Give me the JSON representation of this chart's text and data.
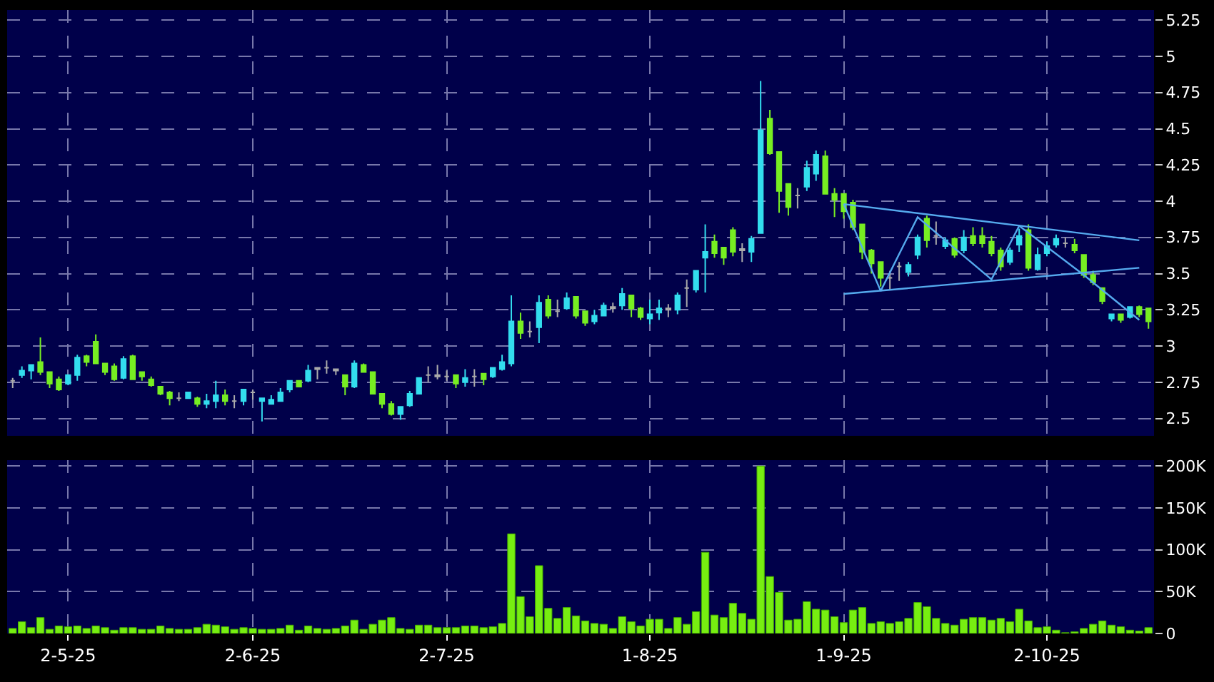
{
  "chart_data": [
    {
      "type": "candlestick",
      "categories": [
        null,
        null,
        null,
        null,
        null,
        null,
        null,
        null,
        null,
        null,
        null,
        null,
        null,
        null,
        null,
        null,
        null,
        null,
        null,
        null,
        null,
        null,
        null,
        null,
        null,
        null,
        null,
        null,
        null,
        null,
        null,
        null,
        null,
        null,
        null,
        null,
        null,
        null,
        null,
        null,
        null,
        null,
        null,
        null,
        null,
        null,
        null,
        null,
        null,
        null,
        null,
        null,
        null,
        null,
        null,
        null,
        null,
        null,
        null,
        null,
        null,
        null,
        null,
        null,
        null,
        null,
        null,
        null,
        null,
        null,
        null,
        null,
        null,
        null,
        null,
        null,
        null,
        null,
        null,
        null,
        null,
        null,
        null,
        null,
        null,
        null,
        null,
        null,
        null,
        null,
        null,
        null,
        null,
        null,
        null,
        null,
        null,
        null,
        null,
        null,
        null,
        null,
        null,
        null,
        null,
        null,
        null,
        null,
        null,
        null,
        null,
        null,
        null,
        null,
        null,
        null,
        null,
        null,
        null,
        null,
        null,
        null,
        null,
        null
      ],
      "ohlc": [
        [
          2.76,
          2.78,
          2.71,
          2.76
        ],
        [
          2.8,
          2.86,
          2.78,
          2.83
        ],
        [
          2.83,
          2.87,
          2.77,
          2.87
        ],
        [
          2.89,
          3.06,
          2.8,
          2.82
        ],
        [
          2.82,
          2.82,
          2.71,
          2.74
        ],
        [
          2.77,
          2.79,
          2.69,
          2.7
        ],
        [
          2.74,
          2.8,
          2.73,
          2.8
        ],
        [
          2.8,
          2.94,
          2.76,
          2.92
        ],
        [
          2.93,
          2.94,
          2.86,
          2.89
        ],
        [
          3.03,
          3.08,
          2.88,
          2.88
        ],
        [
          2.88,
          2.88,
          2.8,
          2.82
        ],
        [
          2.86,
          2.88,
          2.76,
          2.77
        ],
        [
          2.78,
          2.93,
          2.77,
          2.91
        ],
        [
          2.93,
          2.94,
          2.77,
          2.77
        ],
        [
          2.82,
          2.82,
          2.76,
          2.79
        ],
        [
          2.77,
          2.79,
          2.72,
          2.73
        ],
        [
          2.72,
          2.72,
          2.66,
          2.67
        ],
        [
          2.68,
          2.69,
          2.59,
          2.64
        ],
        [
          2.64,
          2.68,
          2.62,
          2.64
        ],
        [
          2.64,
          2.68,
          2.64,
          2.68
        ],
        [
          2.64,
          2.65,
          2.58,
          2.6
        ],
        [
          2.6,
          2.67,
          2.57,
          2.62
        ],
        [
          2.62,
          2.76,
          2.57,
          2.66
        ],
        [
          2.66,
          2.7,
          2.59,
          2.62
        ],
        [
          2.62,
          2.66,
          2.57,
          2.62
        ],
        [
          2.62,
          2.7,
          2.59,
          2.7
        ],
        [
          2.68,
          2.7,
          2.63,
          2.68
        ],
        [
          2.62,
          2.64,
          2.48,
          2.64
        ],
        [
          2.6,
          2.66,
          2.6,
          2.63
        ],
        [
          2.62,
          2.71,
          2.62,
          2.68
        ],
        [
          2.7,
          2.76,
          2.68,
          2.76
        ],
        [
          2.76,
          2.76,
          2.72,
          2.72
        ],
        [
          2.76,
          2.87,
          2.75,
          2.83
        ],
        [
          2.84,
          2.85,
          2.77,
          2.85
        ],
        [
          2.85,
          2.9,
          2.81,
          2.85
        ],
        [
          2.84,
          2.84,
          2.8,
          2.83
        ],
        [
          2.8,
          2.8,
          2.66,
          2.72
        ],
        [
          2.72,
          2.9,
          2.71,
          2.88
        ],
        [
          2.87,
          2.88,
          2.82,
          2.82
        ],
        [
          2.82,
          2.82,
          2.67,
          2.67
        ],
        [
          2.67,
          2.67,
          2.57,
          2.6
        ],
        [
          2.6,
          2.62,
          2.52,
          2.53
        ],
        [
          2.53,
          2.58,
          2.49,
          2.58
        ],
        [
          2.59,
          2.69,
          2.58,
          2.67
        ],
        [
          2.67,
          2.78,
          2.67,
          2.78
        ],
        [
          2.8,
          2.86,
          2.75,
          2.8
        ],
        [
          2.79,
          2.87,
          2.77,
          2.8
        ],
        [
          2.79,
          2.83,
          2.76,
          2.79
        ],
        [
          2.8,
          2.8,
          2.71,
          2.74
        ],
        [
          2.75,
          2.84,
          2.72,
          2.78
        ],
        [
          2.79,
          2.84,
          2.72,
          2.79
        ],
        [
          2.81,
          2.81,
          2.73,
          2.77
        ],
        [
          2.79,
          2.85,
          2.78,
          2.85
        ],
        [
          2.84,
          2.94,
          2.83,
          2.89
        ],
        [
          2.88,
          3.35,
          2.86,
          3.17
        ],
        [
          3.17,
          3.23,
          3.05,
          3.09
        ],
        [
          3.1,
          3.17,
          3.06,
          3.1
        ],
        [
          3.13,
          3.35,
          3.02,
          3.3
        ],
        [
          3.32,
          3.35,
          3.19,
          3.21
        ],
        [
          3.24,
          3.32,
          3.2,
          3.24
        ],
        [
          3.26,
          3.37,
          3.25,
          3.33
        ],
        [
          3.34,
          3.34,
          3.19,
          3.21
        ],
        [
          3.24,
          3.24,
          3.14,
          3.16
        ],
        [
          3.17,
          3.25,
          3.15,
          3.21
        ],
        [
          3.21,
          3.3,
          3.21,
          3.28
        ],
        [
          3.26,
          3.3,
          3.23,
          3.27
        ],
        [
          3.28,
          3.4,
          3.25,
          3.36
        ],
        [
          3.35,
          3.35,
          3.2,
          3.26
        ],
        [
          3.26,
          3.27,
          3.18,
          3.2
        ],
        [
          3.19,
          3.32,
          3.15,
          3.22
        ],
        [
          3.23,
          3.32,
          3.18,
          3.26
        ],
        [
          3.25,
          3.29,
          3.2,
          3.26
        ],
        [
          3.25,
          3.37,
          3.22,
          3.35
        ],
        [
          3.4,
          3.46,
          3.27,
          3.4
        ],
        [
          3.39,
          3.52,
          3.37,
          3.52
        ],
        [
          3.61,
          3.84,
          3.37,
          3.65
        ],
        [
          3.72,
          3.77,
          3.61,
          3.64
        ],
        [
          3.68,
          3.68,
          3.56,
          3.61
        ],
        [
          3.8,
          3.82,
          3.62,
          3.65
        ],
        [
          3.67,
          3.71,
          3.58,
          3.66
        ],
        [
          3.65,
          3.76,
          3.58,
          3.74
        ],
        [
          3.78,
          4.83,
          3.78,
          4.49
        ],
        [
          4.57,
          4.63,
          4.32,
          4.33
        ],
        [
          4.34,
          4.34,
          3.92,
          4.07
        ],
        [
          4.12,
          4.12,
          3.9,
          3.96
        ],
        [
          4.04,
          4.09,
          3.95,
          4.04
        ],
        [
          4.1,
          4.28,
          4.07,
          4.23
        ],
        [
          4.19,
          4.35,
          4.14,
          4.32
        ],
        [
          4.31,
          4.35,
          4.05,
          4.05
        ],
        [
          4.05,
          4.09,
          3.89,
          4.01
        ],
        [
          4.05,
          4.05,
          3.88,
          3.93
        ],
        [
          3.99,
          4.01,
          3.8,
          3.82
        ],
        [
          3.84,
          3.84,
          3.6,
          3.65
        ],
        [
          3.66,
          3.67,
          3.5,
          3.57
        ],
        [
          3.58,
          3.58,
          3.41,
          3.47
        ],
        [
          3.47,
          3.52,
          3.39,
          3.47
        ],
        [
          3.55,
          3.58,
          3.45,
          3.55
        ],
        [
          3.51,
          3.58,
          3.48,
          3.56
        ],
        [
          3.63,
          3.77,
          3.6,
          3.75
        ],
        [
          3.88,
          3.9,
          3.68,
          3.73
        ],
        [
          3.76,
          3.86,
          3.7,
          3.76
        ],
        [
          3.69,
          3.75,
          3.67,
          3.73
        ],
        [
          3.74,
          3.75,
          3.61,
          3.63
        ],
        [
          3.66,
          3.8,
          3.64,
          3.75
        ],
        [
          3.76,
          3.82,
          3.69,
          3.71
        ],
        [
          3.76,
          3.82,
          3.68,
          3.71
        ],
        [
          3.72,
          3.76,
          3.62,
          3.64
        ],
        [
          3.66,
          3.68,
          3.52,
          3.55
        ],
        [
          3.58,
          3.68,
          3.56,
          3.66
        ],
        [
          3.7,
          3.81,
          3.65,
          3.76
        ],
        [
          3.8,
          3.84,
          3.52,
          3.54
        ],
        [
          3.53,
          3.68,
          3.52,
          3.63
        ],
        [
          3.64,
          3.72,
          3.62,
          3.69
        ],
        [
          3.7,
          3.77,
          3.68,
          3.74
        ],
        [
          3.71,
          3.75,
          3.68,
          3.71
        ],
        [
          3.7,
          3.74,
          3.64,
          3.66
        ],
        [
          3.63,
          3.63,
          3.47,
          3.49
        ],
        [
          3.49,
          3.52,
          3.42,
          3.44
        ],
        [
          3.4,
          3.4,
          3.29,
          3.31
        ],
        [
          3.19,
          3.22,
          3.17,
          3.22
        ],
        [
          3.22,
          3.22,
          3.16,
          3.18
        ],
        [
          3.2,
          3.27,
          3.19,
          3.27
        ],
        [
          3.27,
          3.28,
          3.2,
          3.22
        ],
        [
          3.26,
          3.26,
          3.12,
          3.17
        ]
      ],
      "colors": [
        "#aaaaaa",
        "#33ddee",
        "#33ddee",
        "#77ee22",
        "#77ee22",
        "#77ee22",
        "#33ddee",
        "#33ddee",
        "#77ee22",
        "#77ee22",
        "#77ee22",
        "#77ee22",
        "#33ddee",
        "#77ee22",
        "#77ee22",
        "#77ee22",
        "#77ee22",
        "#77ee22",
        "#aaaaaa",
        "#33ddee",
        "#77ee22",
        "#33ddee",
        "#33ddee",
        "#77ee22",
        "#aaaaaa",
        "#33ddee",
        "#aaaaaa",
        "#33ddee",
        "#33ddee",
        "#33ddee",
        "#33ddee",
        "#77ee22",
        "#33ddee",
        "#aaaaaa",
        "#aaaaaa",
        "#aaaaaa",
        "#77ee22",
        "#33ddee",
        "#77ee22",
        "#77ee22",
        "#77ee22",
        "#77ee22",
        "#33ddee",
        "#33ddee",
        "#33ddee",
        "#aaaaaa",
        "#aaaaaa",
        "#aaaaaa",
        "#77ee22",
        "#33ddee",
        "#aaaaaa",
        "#77ee22",
        "#33ddee",
        "#33ddee",
        "#33ddee",
        "#77ee22",
        "#aaaaaa",
        "#33ddee",
        "#77ee22",
        "#aaaaaa",
        "#33ddee",
        "#77ee22",
        "#77ee22",
        "#33ddee",
        "#33ddee",
        "#aaaaaa",
        "#33ddee",
        "#77ee22",
        "#77ee22",
        "#33ddee",
        "#33ddee",
        "#aaaaaa",
        "#33ddee",
        "#aaaaaa",
        "#33ddee",
        "#33ddee",
        "#77ee22",
        "#77ee22",
        "#77ee22",
        "#aaaaaa",
        "#33ddee",
        "#33ddee",
        "#77ee22",
        "#77ee22",
        "#77ee22",
        "#aaaaaa",
        "#33ddee",
        "#33ddee",
        "#77ee22",
        "#77ee22",
        "#77ee22",
        "#77ee22",
        "#77ee22",
        "#77ee22",
        "#77ee22",
        "#aaaaaa",
        "#aaaaaa",
        "#33ddee",
        "#33ddee",
        "#77ee22",
        "#aaaaaa",
        "#33ddee",
        "#77ee22",
        "#33ddee",
        "#77ee22",
        "#77ee22",
        "#77ee22",
        "#77ee22",
        "#33ddee",
        "#33ddee",
        "#77ee22",
        "#33ddee",
        "#33ddee",
        "#33ddee",
        "#aaaaaa",
        "#77ee22",
        "#77ee22",
        "#77ee22",
        "#77ee22",
        "#33ddee",
        "#77ee22",
        "#33ddee",
        "#77ee22",
        "#77ee22"
      ],
      "series": [
        {
          "type": "line",
          "color": "#55aaee",
          "values": [
            null,
            null,
            null,
            null,
            null,
            null,
            null,
            null,
            null,
            null,
            null,
            null,
            null,
            null,
            null,
            null,
            null,
            null,
            null,
            null,
            null,
            null,
            null,
            null,
            null,
            null,
            null,
            null,
            null,
            null,
            null,
            null,
            null,
            null,
            null,
            null,
            null,
            null,
            null,
            null,
            null,
            null,
            null,
            null,
            null,
            null,
            null,
            null,
            null,
            null,
            null,
            null,
            null,
            null,
            null,
            null,
            null,
            null,
            null,
            null,
            null,
            null,
            null,
            null,
            null,
            null,
            null,
            null,
            null,
            null,
            null,
            null,
            null,
            null,
            null,
            null,
            null,
            null,
            null,
            null,
            null,
            null,
            null,
            null,
            null,
            null,
            null,
            null,
            null,
            null,
            3.98,
            null,
            null,
            null,
            null,
            null,
            null,
            null,
            null,
            null,
            null,
            null,
            null,
            null,
            null,
            null,
            null,
            null,
            null,
            null,
            null,
            null,
            null,
            null,
            null,
            null,
            null,
            null,
            null,
            null,
            null,
            null,
            3.73,
            null
          ]
        },
        {
          "type": "line",
          "color": "#55aaee",
          "values": [
            null,
            null,
            null,
            null,
            null,
            null,
            null,
            null,
            null,
            null,
            null,
            null,
            null,
            null,
            null,
            null,
            null,
            null,
            null,
            null,
            null,
            null,
            null,
            null,
            null,
            null,
            null,
            null,
            null,
            null,
            null,
            null,
            null,
            null,
            null,
            null,
            null,
            null,
            null,
            null,
            null,
            null,
            null,
            null,
            null,
            null,
            null,
            null,
            null,
            null,
            null,
            null,
            null,
            null,
            null,
            null,
            null,
            null,
            null,
            null,
            null,
            null,
            null,
            null,
            null,
            null,
            null,
            null,
            null,
            null,
            null,
            null,
            null,
            null,
            null,
            null,
            null,
            null,
            null,
            null,
            null,
            null,
            null,
            null,
            null,
            null,
            null,
            null,
            null,
            null,
            3.36,
            null,
            null,
            null,
            null,
            null,
            null,
            null,
            null,
            null,
            null,
            null,
            null,
            null,
            null,
            null,
            null,
            null,
            null,
            null,
            null,
            null,
            null,
            null,
            null,
            null,
            null,
            null,
            null,
            null,
            null,
            null,
            3.54,
            null
          ]
        },
        {
          "type": "line",
          "color": "#55aaee",
          "values": [
            null,
            null,
            null,
            null,
            null,
            null,
            null,
            null,
            null,
            null,
            null,
            null,
            null,
            null,
            null,
            null,
            null,
            null,
            null,
            null,
            null,
            null,
            null,
            null,
            null,
            null,
            null,
            null,
            null,
            null,
            null,
            null,
            null,
            null,
            null,
            null,
            null,
            null,
            null,
            null,
            null,
            null,
            null,
            null,
            null,
            null,
            null,
            null,
            null,
            null,
            null,
            null,
            null,
            null,
            null,
            null,
            null,
            null,
            null,
            null,
            null,
            null,
            null,
            null,
            null,
            null,
            null,
            null,
            null,
            null,
            null,
            null,
            null,
            null,
            null,
            null,
            null,
            null,
            null,
            null,
            null,
            null,
            null,
            null,
            null,
            null,
            null,
            null,
            null,
            null,
            3.98,
            null,
            null,
            null,
            3.38,
            null,
            null,
            null,
            3.89,
            null,
            null,
            null,
            null,
            null,
            null,
            null,
            3.46,
            null,
            null,
            3.83,
            null,
            null,
            null,
            null,
            null,
            null,
            3.49,
            null,
            null,
            null,
            null,
            null,
            3.18,
            null
          ]
        }
      ],
      "ylim": [
        2.38,
        5.32
      ],
      "yticks": [
        2.5,
        2.75,
        3,
        3.25,
        3.5,
        3.75,
        4,
        4.25,
        4.5,
        4.75,
        5,
        5.25
      ],
      "grid": true,
      "tick_labels": "y"
    },
    {
      "type": "bar",
      "categories": [
        null,
        null,
        null,
        null,
        null,
        null,
        "2-5-25",
        null,
        null,
        null,
        null,
        null,
        null,
        null,
        null,
        null,
        null,
        null,
        null,
        null,
        null,
        null,
        null,
        null,
        null,
        null,
        "2-6-25",
        null,
        null,
        null,
        null,
        null,
        null,
        null,
        null,
        null,
        null,
        null,
        null,
        null,
        null,
        null,
        null,
        null,
        null,
        null,
        null,
        "2-7-25",
        null,
        null,
        null,
        null,
        null,
        null,
        null,
        null,
        null,
        null,
        null,
        null,
        null,
        null,
        null,
        null,
        null,
        null,
        null,
        null,
        null,
        "1-8-25",
        null,
        null,
        null,
        null,
        null,
        null,
        null,
        null,
        null,
        null,
        null,
        null,
        null,
        null,
        null,
        null,
        null,
        null,
        null,
        null,
        "1-9-25",
        null,
        null,
        null,
        null,
        null,
        null,
        null,
        null,
        null,
        null,
        null,
        null,
        null,
        null,
        null,
        null,
        null,
        null,
        null,
        null,
        null,
        "2-10-25",
        null,
        null,
        null,
        null,
        null,
        null,
        null,
        null,
        null,
        null,
        null
      ],
      "values": [
        6000,
        14000,
        7000,
        19000,
        5000,
        9000,
        8000,
        9000,
        6000,
        9000,
        7000,
        4000,
        7000,
        7000,
        5000,
        5000,
        9000,
        6000,
        5000,
        5000,
        7000,
        11000,
        10000,
        8000,
        5000,
        7000,
        6000,
        5000,
        5000,
        6000,
        10000,
        4000,
        9000,
        6000,
        5000,
        6000,
        9000,
        16000,
        5000,
        11000,
        16000,
        19000,
        6000,
        5000,
        10000,
        10000,
        7000,
        7000,
        7000,
        9000,
        9000,
        7000,
        8000,
        12000,
        119000,
        44000,
        20000,
        81000,
        30000,
        18000,
        31000,
        21000,
        15000,
        12000,
        11000,
        6000,
        20000,
        14000,
        9000,
        17000,
        17000,
        6000,
        19000,
        11000,
        26000,
        97000,
        22000,
        19000,
        36000,
        24000,
        17000,
        200000,
        68000,
        49000,
        16000,
        17000,
        38000,
        29000,
        28000,
        20000,
        13000,
        28000,
        31000,
        12000,
        14000,
        12000,
        14000,
        18000,
        37000,
        32000,
        18000,
        12000,
        10000,
        17000,
        19000,
        19000,
        16000,
        18000,
        14000,
        29000,
        15000,
        7000,
        8000,
        4000,
        1000,
        2000,
        6000,
        11000,
        15000,
        10000,
        8000,
        4000,
        3000,
        7000
      ],
      "color": "#77ee11",
      "ylim": [
        0,
        207000
      ],
      "yticks": [
        0,
        {
          "value": 50000,
          "label": "50K"
        },
        {
          "value": 100000,
          "label": "100K"
        },
        {
          "value": 150000,
          "label": "150K"
        },
        {
          "value": 200000,
          "label": "200K"
        }
      ],
      "grid": true
    }
  ]
}
